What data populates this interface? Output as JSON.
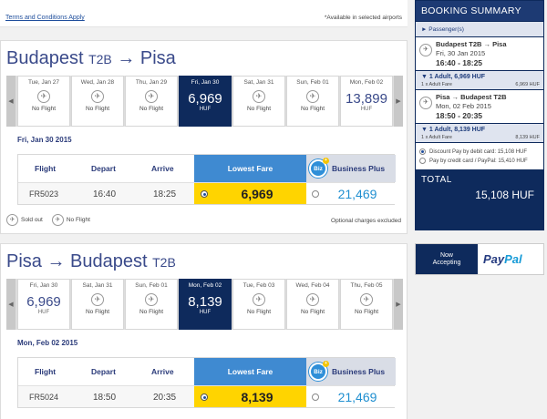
{
  "top": {
    "terms_link": "Terms and Conditions Apply",
    "availability_note": "*Available in selected airports"
  },
  "outbound": {
    "origin": "Budapest",
    "origin_terminal": "T2B",
    "arrow": "→",
    "destination": "Pisa",
    "dates": [
      {
        "label": "Tue, Jan 27",
        "status": "No Flight"
      },
      {
        "label": "Wed, Jan 28",
        "status": "No Flight"
      },
      {
        "label": "Thu, Jan 29",
        "status": "No Flight"
      },
      {
        "label": "Fri, Jan 30",
        "price": "6,969",
        "currency": "HUF",
        "selected": true
      },
      {
        "label": "Sat, Jan 31",
        "status": "No Flight"
      },
      {
        "label": "Sun, Feb 01",
        "status": "No Flight"
      },
      {
        "label": "Mon, Feb 02",
        "price": "13,899",
        "currency": "HUF"
      }
    ],
    "selected_date": "Fri, Jan 30 2015",
    "flight_no": "FR5023",
    "depart": "16:40",
    "arrive": "18:25",
    "lowest_fare": "6,969",
    "business_plus": "21,469"
  },
  "return": {
    "origin": "Pisa",
    "arrow": "→",
    "destination": "Budapest",
    "destination_terminal": "T2B",
    "dates": [
      {
        "label": "Fri, Jan 30",
        "price": "6,969",
        "currency": "HUF"
      },
      {
        "label": "Sat, Jan 31",
        "status": "No Flight"
      },
      {
        "label": "Sun, Feb 01",
        "status": "No Flight"
      },
      {
        "label": "Mon, Feb 02",
        "price": "8,139",
        "currency": "HUF",
        "selected": true
      },
      {
        "label": "Tue, Feb 03",
        "status": "No Flight"
      },
      {
        "label": "Wed, Feb 04",
        "status": "No Flight"
      },
      {
        "label": "Thu, Feb 05",
        "status": "No Flight"
      }
    ],
    "selected_date": "Mon, Feb 02 2015",
    "flight_no": "FR5024",
    "depart": "18:50",
    "arrive": "20:35",
    "lowest_fare": "8,139",
    "business_plus": "21,469"
  },
  "fare_table": {
    "col_flight": "Flight",
    "col_depart": "Depart",
    "col_arrive": "Arrive",
    "col_lowest": "Lowest Fare",
    "col_business": "Business Plus",
    "biz_badge": "Biz",
    "biz_star": "+"
  },
  "legend": {
    "sold_out": "Sold out",
    "no_flight": "No Flight",
    "optional_charges": "Optional charges excluded"
  },
  "summary": {
    "title": "BOOKING SUMMARY",
    "passengers": "► Passenger(s)",
    "seg1": {
      "route": "Budapest T2B → Pisa",
      "date": "Fri, 30 Jan 2015",
      "time": "16:40 - 18:25"
    },
    "adult1": {
      "label": "▼ 1 Adult, 6,969 HUF",
      "desc": "1 x Adult Fare",
      "amount": "6,969 HUF"
    },
    "seg2": {
      "route": "Pisa → Budapest T2B",
      "date": "Mon, 02 Feb 2015",
      "time": "18:50 - 20:35"
    },
    "adult2": {
      "label": "▼ 1 Adult, 8,139 HUF",
      "desc": "1 x Adult Fare",
      "amount": "8,139 HUF"
    },
    "pay_debit": "Discount Pay by debit card: 15,108 HUF",
    "pay_credit": "Pay by credit card / PayPal: 15,410 HUF",
    "total_label": "TOTAL",
    "total_value": "15,108 HUF"
  },
  "paypal": {
    "now_line1": "Now",
    "now_line2": "Accepting",
    "logo_pay": "Pay",
    "logo_pal": "Pal"
  },
  "icons": {
    "no_flight_glyph": "✈",
    "sold_out_glyph": "✈",
    "arrow_left": "◀",
    "arrow_right": "▶"
  }
}
